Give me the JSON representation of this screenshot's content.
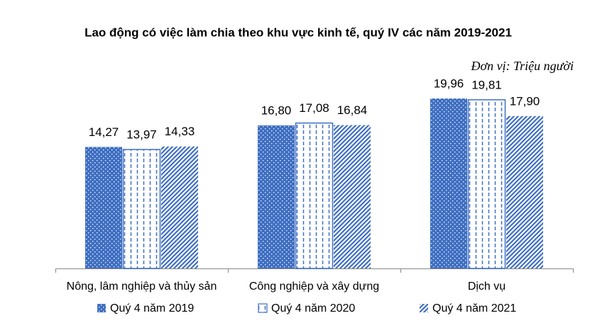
{
  "chart_data": {
    "type": "bar",
    "title": "Lao động có việc làm chia theo khu vực kinh tế, quý IV các năm 2019-2021",
    "subtitle": "Đơn vị: Triệu người",
    "categories": [
      "Nông, lâm nghiệp và thủy sản",
      "Công nghiệp và xây dựng",
      "Dịch vụ"
    ],
    "series": [
      {
        "name": "Quý 4 năm 2019",
        "color": "#3f6fc2",
        "values": [
          14.27,
          16.8,
          19.96
        ],
        "value_labels": [
          "14,27",
          "16,80",
          "19,96"
        ]
      },
      {
        "name": "Quý 4 năm 2020",
        "color": "#3f6fc2",
        "values": [
          13.97,
          17.08,
          19.81
        ],
        "value_labels": [
          "13,97",
          "17,08",
          "19,81"
        ]
      },
      {
        "name": "Quý 4 năm 2021",
        "color": "#3f6fc2",
        "values": [
          14.33,
          16.84,
          17.9
        ],
        "value_labels": [
          "14,33",
          "16,84",
          "17,90"
        ]
      }
    ]
  }
}
